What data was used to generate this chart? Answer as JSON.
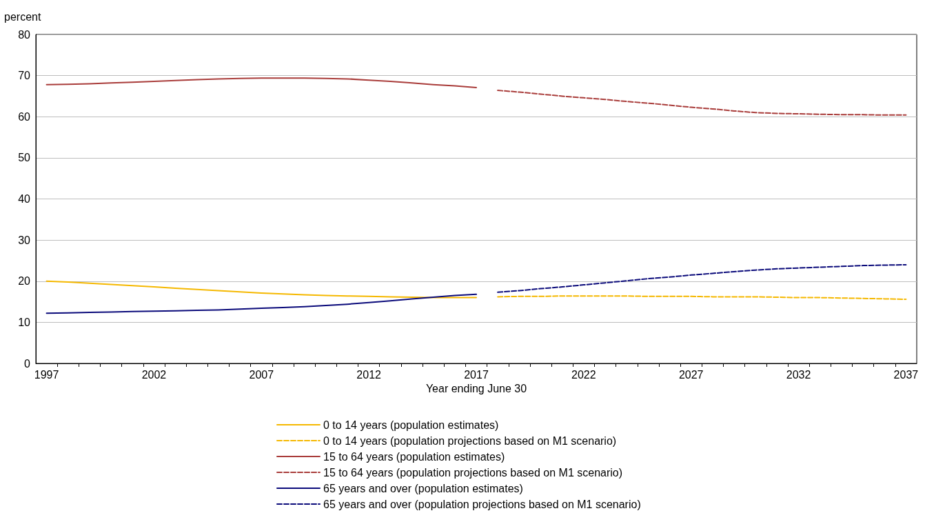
{
  "chart_data": {
    "type": "line",
    "xlabel": "Year ending June 30",
    "ylabel": "percent",
    "xlim": [
      1996.5,
      2037.5
    ],
    "xticks": [
      1997,
      2002,
      2007,
      2012,
      2017,
      2022,
      2027,
      2032,
      2037,
      {
        "value": 1997.5,
        "label": null
      },
      {
        "value": 1998.5,
        "label": null
      },
      {
        "value": 1999.5,
        "label": null
      },
      {
        "value": 2000.5,
        "label": null
      },
      {
        "value": 2001.5,
        "label": null
      },
      {
        "value": 2002.5,
        "label": null
      },
      {
        "value": 2003.5,
        "label": null
      },
      {
        "value": 2004.5,
        "label": null
      },
      {
        "value": 2005.5,
        "label": null
      },
      {
        "value": 2006.5,
        "label": null
      },
      {
        "value": 2007.5,
        "label": null
      },
      {
        "value": 2008.5,
        "label": null
      },
      {
        "value": 2009.5,
        "label": null
      },
      {
        "value": 2010.5,
        "label": null
      },
      {
        "value": 2011.5,
        "label": null
      },
      {
        "value": 2012.5,
        "label": null
      },
      {
        "value": 2013.5,
        "label": null
      },
      {
        "value": 2014.5,
        "label": null
      },
      {
        "value": 2015.5,
        "label": null
      },
      {
        "value": 2016.5,
        "label": null
      },
      {
        "value": 2017.5,
        "label": null
      },
      {
        "value": 2018.5,
        "label": null
      },
      {
        "value": 2019.5,
        "label": null
      },
      {
        "value": 2020.5,
        "label": null
      },
      {
        "value": 2021.5,
        "label": null
      },
      {
        "value": 2022.5,
        "label": null
      },
      {
        "value": 2023.5,
        "label": null
      },
      {
        "value": 2024.5,
        "label": null
      },
      {
        "value": 2025.5,
        "label": null
      },
      {
        "value": 2026.5,
        "label": null
      },
      {
        "value": 2027.5,
        "label": null
      },
      {
        "value": 2028.5,
        "label": null
      },
      {
        "value": 2029.5,
        "label": null
      },
      {
        "value": 2030.5,
        "label": null
      },
      {
        "value": 2031.5,
        "label": null
      },
      {
        "value": 2032.5,
        "label": null
      },
      {
        "value": 2033.5,
        "label": null
      },
      {
        "value": 2034.5,
        "label": null
      },
      {
        "value": 2035.5,
        "label": null
      },
      {
        "value": 2036.5,
        "label": null
      }
    ],
    "ylim": [
      0,
      80
    ],
    "yticks": [
      0,
      10,
      20,
      30,
      40,
      50,
      60,
      70,
      80
    ],
    "grid": "y",
    "legend": "bottom",
    "marker": "none",
    "series": [
      {
        "name": "0 to 14 years (population estimates)",
        "color": "#f5b800",
        "line_style": "solid",
        "x": [
          1997,
          1998,
          1999,
          2000,
          2001,
          2002,
          2003,
          2004,
          2005,
          2006,
          2007,
          2008,
          2009,
          2010,
          2011,
          2012,
          2013,
          2014,
          2015,
          2016,
          2017
        ],
        "values": [
          20.0,
          19.8,
          19.5,
          19.2,
          18.9,
          18.6,
          18.3,
          18.0,
          17.7,
          17.4,
          17.1,
          16.9,
          16.7,
          16.5,
          16.4,
          16.3,
          16.2,
          16.1,
          16.0,
          16.0,
          16.0
        ]
      },
      {
        "name": "0 to 14 years (population projections based on M1 scenario)",
        "color": "#f5b800",
        "line_style": "dashed",
        "x": [
          2018,
          2019,
          2020,
          2021,
          2022,
          2023,
          2024,
          2025,
          2026,
          2027,
          2028,
          2029,
          2030,
          2031,
          2032,
          2033,
          2034,
          2035,
          2036,
          2037
        ],
        "values": [
          16.2,
          16.3,
          16.3,
          16.4,
          16.4,
          16.4,
          16.4,
          16.3,
          16.3,
          16.3,
          16.2,
          16.2,
          16.2,
          16.1,
          16.0,
          16.0,
          15.9,
          15.8,
          15.7,
          15.6
        ]
      },
      {
        "name": "15 to 64 years (population estimates)",
        "color": "#a93c3a",
        "line_style": "solid",
        "x": [
          1997,
          1998,
          1999,
          2000,
          2001,
          2002,
          2003,
          2004,
          2005,
          2006,
          2007,
          2008,
          2009,
          2010,
          2011,
          2012,
          2013,
          2014,
          2015,
          2016,
          2017
        ],
        "values": [
          67.8,
          67.9,
          68.0,
          68.2,
          68.4,
          68.6,
          68.8,
          69.0,
          69.2,
          69.3,
          69.4,
          69.4,
          69.4,
          69.3,
          69.2,
          68.9,
          68.6,
          68.2,
          67.8,
          67.5,
          67.1
        ]
      },
      {
        "name": "15 to 64 years (population projections based on M1 scenario)",
        "color": "#a93c3a",
        "line_style": "dashed",
        "x": [
          2018,
          2019,
          2020,
          2021,
          2022,
          2023,
          2024,
          2025,
          2026,
          2027,
          2028,
          2029,
          2030,
          2031,
          2032,
          2033,
          2034,
          2035,
          2036,
          2037
        ],
        "values": [
          66.4,
          66.0,
          65.5,
          65.0,
          64.6,
          64.2,
          63.7,
          63.3,
          62.8,
          62.3,
          61.9,
          61.4,
          61.0,
          60.8,
          60.7,
          60.6,
          60.5,
          60.5,
          60.4,
          60.4
        ]
      },
      {
        "name": "65 years and over (population estimates)",
        "color": "#0a0a7a",
        "line_style": "solid",
        "x": [
          1997,
          1998,
          1999,
          2000,
          2001,
          2002,
          2003,
          2004,
          2005,
          2006,
          2007,
          2008,
          2009,
          2010,
          2011,
          2012,
          2013,
          2014,
          2015,
          2016,
          2017
        ],
        "values": [
          12.2,
          12.3,
          12.4,
          12.5,
          12.6,
          12.7,
          12.8,
          12.9,
          13.0,
          13.2,
          13.4,
          13.6,
          13.8,
          14.1,
          14.4,
          14.8,
          15.2,
          15.7,
          16.1,
          16.5,
          16.8
        ]
      },
      {
        "name": "65 years and over (population projections based on M1 scenario)",
        "color": "#0a0a7a",
        "line_style": "dashed",
        "x": [
          2018,
          2019,
          2020,
          2021,
          2022,
          2023,
          2024,
          2025,
          2026,
          2027,
          2028,
          2029,
          2030,
          2031,
          2032,
          2033,
          2034,
          2035,
          2036,
          2037
        ],
        "values": [
          17.3,
          17.7,
          18.2,
          18.6,
          19.1,
          19.6,
          20.1,
          20.6,
          21.0,
          21.5,
          21.9,
          22.3,
          22.7,
          23.0,
          23.2,
          23.4,
          23.6,
          23.8,
          23.9,
          24.0
        ]
      }
    ]
  }
}
